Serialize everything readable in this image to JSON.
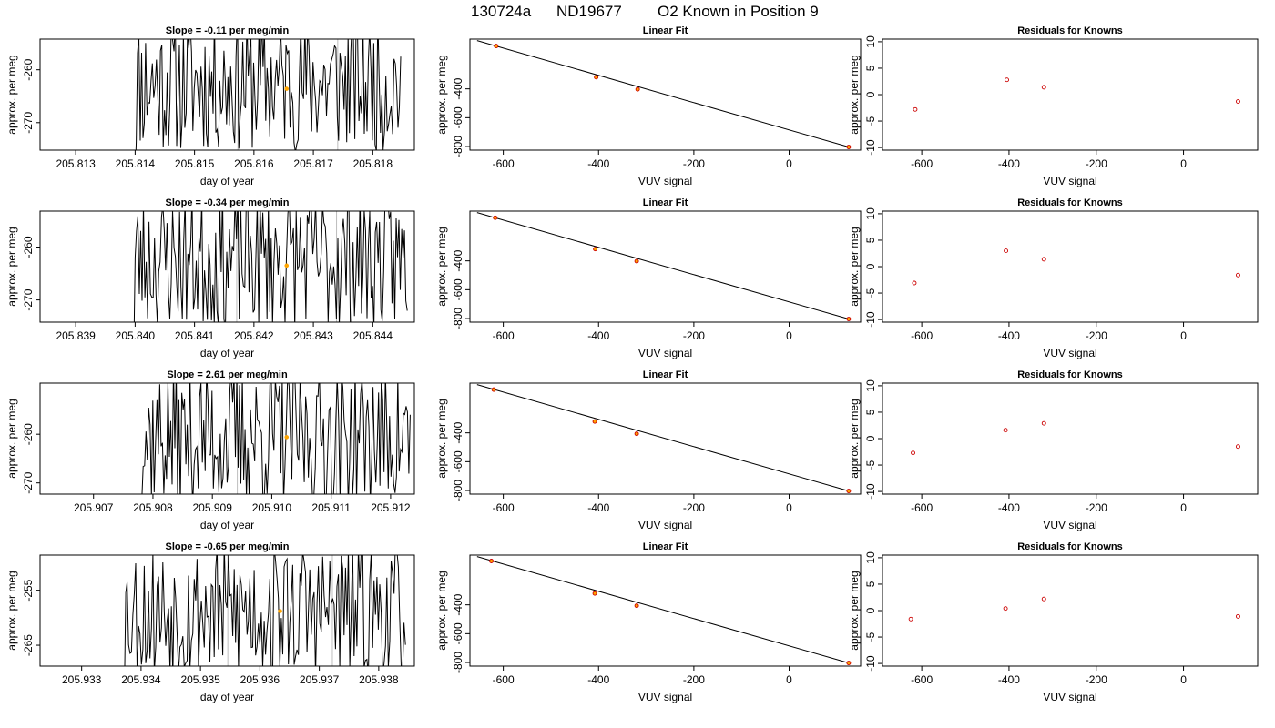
{
  "figure": {
    "title_parts": [
      "130724a",
      "ND19677",
      "O2 Known in Position  9"
    ]
  },
  "colors": {
    "trace": "#000000",
    "vertical_marker": "#bebebe",
    "mean_point": "#ffa500",
    "fit_point_fill": "#ffa500",
    "fit_point_edge": "#cc0000",
    "residual_point": "#cc0000",
    "fit_line": "#000000"
  },
  "chart_data": [
    {
      "type": "line",
      "row": 1,
      "title": "Slope =  -0.11  per meg/min",
      "xlabel": "day of year",
      "ylabel": "approx. per meg",
      "xlim": [
        205.8124,
        205.8187
      ],
      "ylim": [
        -275.2,
        -254.2
      ],
      "xticks": [
        205.813,
        205.814,
        205.815,
        205.816,
        205.817,
        205.818
      ],
      "xtick_labels": [
        "205.813",
        "205.814",
        "205.815",
        "205.816",
        "205.817",
        "205.818"
      ],
      "yticks": [
        -260,
        -270
      ],
      "ytick_labels": [
        "-260",
        "-270"
      ],
      "vlines": [
        205.81573,
        205.81741
      ],
      "mean_point": {
        "x": 205.81655,
        "y": -263.6
      },
      "trace": {
        "x_start": 205.81395,
        "x_end": 205.81847,
        "n": 200,
        "center": -262.5,
        "amplitude": 10.5,
        "seed": 11
      }
    },
    {
      "type": "scatter",
      "row": 1,
      "title": "Linear Fit",
      "xlabel": "VUV signal",
      "ylabel": "approx. per meg",
      "xlim": [
        -670,
        150
      ],
      "ylim": [
        -825,
        -55
      ],
      "xticks": [
        -600,
        -400,
        -200,
        0
      ],
      "xtick_labels": [
        "-600",
        "-400",
        "-200",
        "0"
      ],
      "yticks": [
        -400,
        -600,
        -800
      ],
      "ytick_labels": [
        "-400",
        "-600",
        "-800"
      ],
      "points": [
        {
          "x": -615,
          "y": -103
        },
        {
          "x": -405,
          "y": -319
        },
        {
          "x": -318,
          "y": -403
        },
        {
          "x": 125,
          "y": -803
        }
      ],
      "fit_line": {
        "x": [
          -655,
          125
        ],
        "y": [
          -65,
          -803
        ]
      }
    },
    {
      "type": "scatter",
      "row": 1,
      "title": "Residuals for Knowns",
      "xlabel": "VUV signal",
      "ylabel": "approx. per meg",
      "xlim": [
        -690,
        170
      ],
      "ylim": [
        -10.5,
        10.5
      ],
      "xticks": [
        -600,
        -400,
        -200,
        0
      ],
      "xtick_labels": [
        "-600",
        "-400",
        "-200",
        "0"
      ],
      "yticks": [
        10,
        5,
        0,
        -5,
        -10
      ],
      "ytick_labels": [
        "10",
        "5",
        "0",
        "-5",
        "-10"
      ],
      "points": [
        {
          "x": -615,
          "y": -2.8
        },
        {
          "x": -405,
          "y": 2.8
        },
        {
          "x": -320,
          "y": 1.4
        },
        {
          "x": 125,
          "y": -1.3
        }
      ]
    },
    {
      "type": "line",
      "row": 2,
      "title": "Slope =  -0.34  per meg/min",
      "xlabel": "day of year",
      "ylabel": "approx. per meg",
      "xlim": [
        205.8384,
        205.8447
      ],
      "ylim": [
        -274.2,
        -253.2
      ],
      "xticks": [
        205.839,
        205.84,
        205.841,
        205.842,
        205.843,
        205.844
      ],
      "xtick_labels": [
        "205.839",
        "205.840",
        "205.841",
        "205.842",
        "205.843",
        "205.844"
      ],
      "yticks": [
        -260,
        -270
      ],
      "ytick_labels": [
        "-260",
        "-270"
      ],
      "vlines": [
        205.84171,
        205.84339
      ],
      "mean_point": {
        "x": 205.84255,
        "y": -263.5
      },
      "trace": {
        "x_start": 205.83993,
        "x_end": 205.84458,
        "n": 200,
        "center": -262.5,
        "amplitude": 10.5,
        "seed": 23
      }
    },
    {
      "type": "scatter",
      "row": 2,
      "title": "Linear Fit",
      "xlabel": "VUV signal",
      "ylabel": "approx. per meg",
      "xlim": [
        -670,
        150
      ],
      "ylim": [
        -825,
        -55
      ],
      "xticks": [
        -600,
        -400,
        -200,
        0
      ],
      "xtick_labels": [
        "-600",
        "-400",
        "-200",
        "0"
      ],
      "yticks": [
        -400,
        -600,
        -800
      ],
      "ytick_labels": [
        "-400",
        "-600",
        "-800"
      ],
      "points": [
        {
          "x": -617,
          "y": -101
        },
        {
          "x": -407,
          "y": -318
        },
        {
          "x": -320,
          "y": -402
        },
        {
          "x": 125,
          "y": -803
        }
      ],
      "fit_line": {
        "x": [
          -655,
          125
        ],
        "y": [
          -65,
          -803
        ]
      }
    },
    {
      "type": "scatter",
      "row": 2,
      "title": "Residuals for Knowns",
      "xlabel": "VUV signal",
      "ylabel": "approx. per meg",
      "xlim": [
        -690,
        170
      ],
      "ylim": [
        -10.5,
        10.5
      ],
      "xticks": [
        -600,
        -400,
        -200,
        0
      ],
      "xtick_labels": [
        "-600",
        "-400",
        "-200",
        "0"
      ],
      "yticks": [
        10,
        5,
        0,
        -5,
        -10
      ],
      "ytick_labels": [
        "10",
        "5",
        "0",
        "-5",
        "-10"
      ],
      "points": [
        {
          "x": -617,
          "y": -3.1
        },
        {
          "x": -407,
          "y": 3.0
        },
        {
          "x": -320,
          "y": 1.4
        },
        {
          "x": 125,
          "y": -1.6
        }
      ]
    },
    {
      "type": "line",
      "row": 3,
      "title": "Slope =  2.61  per meg/min",
      "xlabel": "day of year",
      "ylabel": "approx. per meg",
      "xlim": [
        205.9061,
        205.9124
      ],
      "ylim": [
        -272.3,
        -249.5
      ],
      "xticks": [
        205.907,
        205.908,
        205.909,
        205.91,
        205.911,
        205.912
      ],
      "xtick_labels": [
        "205.907",
        "205.908",
        "205.909",
        "205.910",
        "205.911",
        "205.912"
      ],
      "yticks": [
        -260,
        -270
      ],
      "ytick_labels": [
        "-260",
        "-270"
      ],
      "vlines": [
        205.90942,
        205.91109
      ],
      "mean_point": {
        "x": 205.91025,
        "y": -260.6
      },
      "trace": {
        "x_start": 205.90772,
        "x_end": 205.91233,
        "n": 200,
        "center": -260.5,
        "amplitude": 11.5,
        "seed": 37
      }
    },
    {
      "type": "scatter",
      "row": 3,
      "title": "Linear Fit",
      "xlabel": "VUV signal",
      "ylabel": "approx. per meg",
      "xlim": [
        -670,
        150
      ],
      "ylim": [
        -825,
        -55
      ],
      "xticks": [
        -600,
        -400,
        -200,
        0
      ],
      "xtick_labels": [
        "-600",
        "-400",
        "-200",
        "0"
      ],
      "yticks": [
        -400,
        -600,
        -800
      ],
      "ytick_labels": [
        "-400",
        "-600",
        "-800"
      ],
      "points": [
        {
          "x": -620,
          "y": -100
        },
        {
          "x": -408,
          "y": -321
        },
        {
          "x": -320,
          "y": -406
        },
        {
          "x": 125,
          "y": -803
        }
      ],
      "fit_line": {
        "x": [
          -655,
          125
        ],
        "y": [
          -65,
          -803
        ]
      }
    },
    {
      "type": "scatter",
      "row": 3,
      "title": "Residuals for Knowns",
      "xlabel": "VUV signal",
      "ylabel": "approx. per meg",
      "xlim": [
        -690,
        170
      ],
      "ylim": [
        -10.5,
        10.5
      ],
      "xticks": [
        -600,
        -400,
        -200,
        0
      ],
      "xtick_labels": [
        "-600",
        "-400",
        "-200",
        "0"
      ],
      "yticks": [
        10,
        5,
        0,
        -5,
        -10
      ],
      "ytick_labels": [
        "10",
        "5",
        "0",
        "-5",
        "-10"
      ],
      "points": [
        {
          "x": -620,
          "y": -2.7
        },
        {
          "x": -408,
          "y": 1.6
        },
        {
          "x": -320,
          "y": 2.9
        },
        {
          "x": 125,
          "y": -1.5
        }
      ]
    },
    {
      "type": "line",
      "row": 4,
      "title": "Slope =  -0.65  per meg/min",
      "xlabel": "day of year",
      "ylabel": "approx. per meg",
      "xlim": [
        205.9323,
        205.9386
      ],
      "ylim": [
        -268.8,
        -248.6
      ],
      "xticks": [
        205.933,
        205.934,
        205.935,
        205.936,
        205.937,
        205.938
      ],
      "xtick_labels": [
        "205.933",
        "205.934",
        "205.935",
        "205.936",
        "205.937",
        "205.938"
      ],
      "yticks": [
        -255,
        -265
      ],
      "ytick_labels": [
        "-255",
        "-265"
      ],
      "vlines": [
        205.93546,
        205.93722
      ],
      "mean_point": {
        "x": 205.93634,
        "y": -258.8
      },
      "trace": {
        "x_start": 205.93367,
        "x_end": 205.93845,
        "n": 200,
        "center": -258.7,
        "amplitude": 10.0,
        "seed": 53
      }
    },
    {
      "type": "scatter",
      "row": 4,
      "title": "Linear Fit",
      "xlabel": "VUV signal",
      "ylabel": "approx. per meg",
      "xlim": [
        -670,
        150
      ],
      "ylim": [
        -825,
        -55
      ],
      "xticks": [
        -600,
        -400,
        -200,
        0
      ],
      "xtick_labels": [
        "-600",
        "-400",
        "-200",
        "0"
      ],
      "yticks": [
        -400,
        -600,
        -800
      ],
      "ytick_labels": [
        "-400",
        "-600",
        "-800"
      ],
      "points": [
        {
          "x": -625,
          "y": -96
        },
        {
          "x": -408,
          "y": -321
        },
        {
          "x": -320,
          "y": -406
        },
        {
          "x": 125,
          "y": -803
        }
      ],
      "fit_line": {
        "x": [
          -655,
          125
        ],
        "y": [
          -65,
          -803
        ]
      }
    },
    {
      "type": "scatter",
      "row": 4,
      "title": "Residuals for Knowns",
      "xlabel": "VUV signal",
      "ylabel": "approx. per meg",
      "xlim": [
        -690,
        170
      ],
      "ylim": [
        -10.5,
        10.5
      ],
      "xticks": [
        -600,
        -400,
        -200,
        0
      ],
      "xtick_labels": [
        "-600",
        "-400",
        "-200",
        "0"
      ],
      "yticks": [
        10,
        5,
        0,
        -5,
        -10
      ],
      "ytick_labels": [
        "10",
        "5",
        "0",
        "-5",
        "-10"
      ],
      "points": [
        {
          "x": -625,
          "y": -1.6
        },
        {
          "x": -408,
          "y": 0.4
        },
        {
          "x": -320,
          "y": 2.2
        },
        {
          "x": 125,
          "y": -1.1
        }
      ]
    }
  ]
}
